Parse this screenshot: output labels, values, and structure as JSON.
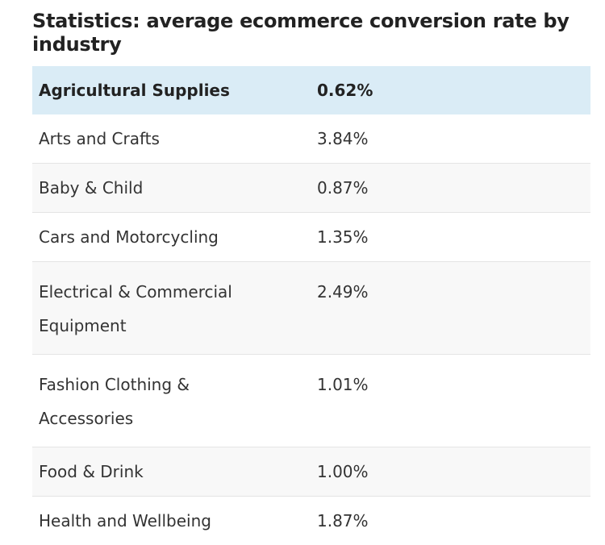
{
  "title": "Statistics: average ecommerce conversion rate by industry",
  "table": {
    "header": {
      "industry": "Agricultural Supplies",
      "rate": "0.62%"
    },
    "rows": [
      {
        "industry": "Arts and Crafts",
        "rate": "3.84%"
      },
      {
        "industry": "Baby & Child",
        "rate": "0.87%"
      },
      {
        "industry": "Cars and Motorcycling",
        "rate": "1.35%"
      },
      {
        "industry": "Electrical & Commercial Equipment",
        "rate": "2.49%"
      },
      {
        "industry": "Fashion Clothing & Accessories",
        "rate": "1.01%"
      },
      {
        "industry": "Food & Drink",
        "rate": "1.00%"
      },
      {
        "industry": "Health and Wellbeing",
        "rate": "1.87%"
      }
    ]
  },
  "colors": {
    "header_background": "#daecf6",
    "shaded_row_background": "#f8f8f8",
    "text": "#222222",
    "row_divider": "#e4e4e4"
  }
}
